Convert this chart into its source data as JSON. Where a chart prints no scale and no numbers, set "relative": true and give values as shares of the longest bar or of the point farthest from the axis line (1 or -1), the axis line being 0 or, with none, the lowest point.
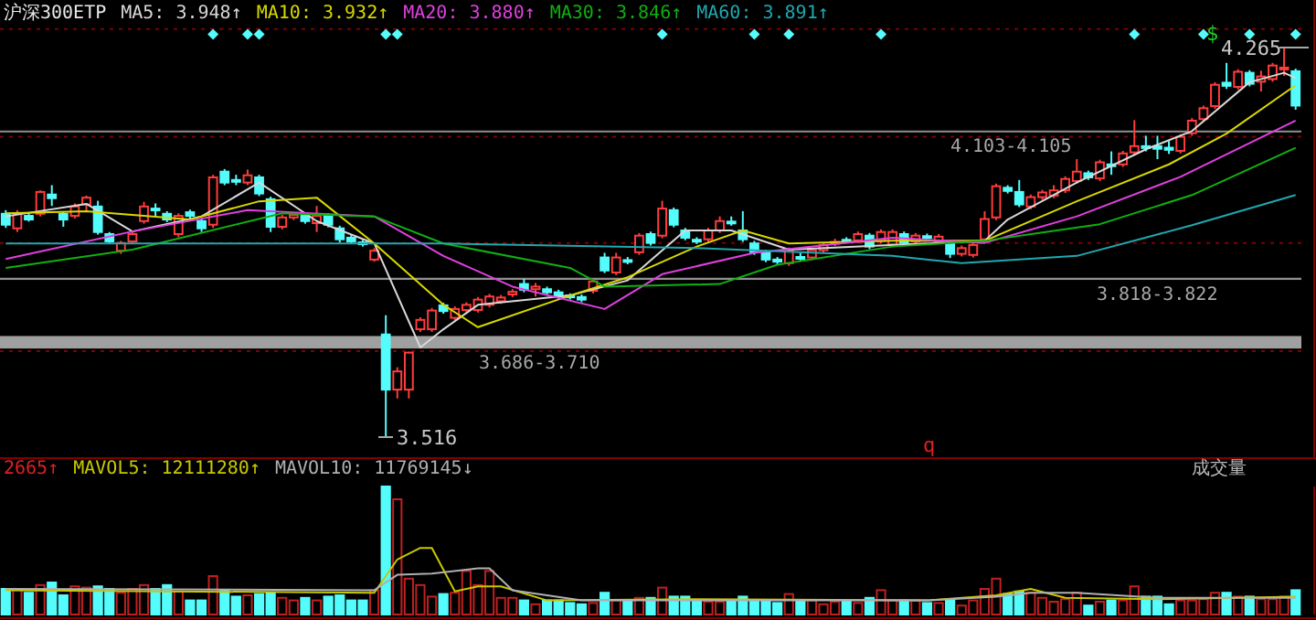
{
  "chart_data": [
    {
      "type": "candlestick",
      "title": "沪深300ETP",
      "legend": "top left",
      "grid": "y",
      "categories": [
        null,
        null,
        null,
        null,
        null,
        null,
        null,
        null,
        null,
        null,
        null,
        null,
        null,
        null,
        null,
        null,
        null,
        null,
        null,
        null,
        null,
        null,
        null,
        null,
        null,
        null,
        null,
        null,
        null,
        null,
        null,
        null,
        null,
        null,
        null,
        null,
        null,
        null,
        null,
        null,
        null,
        null,
        null,
        null,
        null,
        null,
        null,
        null,
        null,
        null,
        null,
        null,
        null,
        null,
        null,
        null,
        null,
        null,
        null,
        null,
        null,
        null,
        null,
        null,
        null,
        null,
        null,
        null,
        null,
        null,
        null,
        null,
        null,
        null,
        null,
        null,
        null,
        null,
        null,
        null,
        null,
        null,
        null,
        null,
        null,
        null,
        null,
        null,
        null,
        null,
        null,
        null,
        null,
        null,
        null,
        null,
        null,
        null,
        null,
        null,
        null,
        null,
        null,
        null,
        null,
        null,
        null,
        null,
        null,
        null,
        null,
        null,
        null
      ],
      "ylim": [
        3.477,
        4.356
      ],
      "yticks": [
        {
          "value": 3.681,
          "label": null
        },
        {
          "value": 3.889,
          "label": null
        },
        {
          "value": 4.093,
          "label": null
        },
        {
          "value": 4.3,
          "label": null
        }
      ],
      "ohlc": [
        [
          3.945,
          3.952,
          3.918,
          3.924
        ],
        [
          3.917,
          3.952,
          3.91,
          3.945
        ],
        [
          3.941,
          3.947,
          3.93,
          3.934
        ],
        [
          3.945,
          3.99,
          3.94,
          3.987
        ],
        [
          3.982,
          4.0,
          3.96,
          3.975
        ],
        [
          3.945,
          3.95,
          3.92,
          3.934
        ],
        [
          3.941,
          3.965,
          3.936,
          3.959
        ],
        [
          3.963,
          3.98,
          3.95,
          3.976
        ],
        [
          3.959,
          3.97,
          3.905,
          3.91
        ],
        [
          3.906,
          3.91,
          3.887,
          3.892
        ],
        [
          3.874,
          3.893,
          3.868,
          3.889
        ],
        [
          3.892,
          3.912,
          3.887,
          3.906
        ],
        [
          3.931,
          3.968,
          3.926,
          3.959
        ],
        [
          3.955,
          3.965,
          3.94,
          3.952
        ],
        [
          3.945,
          3.95,
          3.929,
          3.934
        ],
        [
          3.906,
          3.946,
          3.9,
          3.941
        ],
        [
          3.948,
          3.953,
          3.936,
          3.941
        ],
        [
          3.931,
          3.936,
          3.91,
          3.917
        ],
        [
          3.924,
          4.02,
          3.918,
          4.015
        ],
        [
          4.026,
          4.031,
          4.0,
          4.005
        ],
        [
          4.01,
          4.02,
          4.0,
          4.008
        ],
        [
          4.005,
          4.03,
          4.0,
          4.019
        ],
        [
          4.015,
          4.02,
          3.979,
          3.984
        ],
        [
          3.973,
          3.978,
          3.91,
          3.92
        ],
        [
          3.92,
          3.943,
          3.915,
          3.938
        ],
        [
          3.938,
          3.948,
          3.933,
          3.943
        ],
        [
          3.941,
          3.946,
          3.926,
          3.931
        ],
        [
          3.927,
          3.96,
          3.91,
          3.941
        ],
        [
          3.941,
          3.946,
          3.919,
          3.924
        ],
        [
          3.917,
          3.922,
          3.89,
          3.896
        ],
        [
          3.899,
          3.904,
          3.887,
          3.892
        ],
        [
          3.89,
          3.895,
          3.882,
          3.887
        ],
        [
          3.857,
          3.879,
          3.853,
          3.874
        ],
        [
          3.713,
          3.75,
          3.516,
          3.607
        ],
        [
          3.607,
          3.65,
          3.59,
          3.642
        ],
        [
          3.607,
          3.68,
          3.59,
          3.678
        ],
        [
          3.723,
          3.746,
          3.718,
          3.741
        ],
        [
          3.723,
          3.764,
          3.718,
          3.759
        ],
        [
          3.769,
          3.774,
          3.753,
          3.758
        ],
        [
          3.745,
          3.767,
          3.74,
          3.762
        ],
        [
          3.76,
          3.775,
          3.755,
          3.77
        ],
        [
          3.76,
          3.785,
          3.755,
          3.78
        ],
        [
          3.77,
          3.791,
          3.765,
          3.786
        ],
        [
          3.777,
          3.789,
          3.772,
          3.784
        ],
        [
          3.79,
          3.8,
          3.785,
          3.795
        ],
        [
          3.81,
          3.82,
          3.794,
          3.799
        ],
        [
          3.8,
          3.812,
          3.786,
          3.805
        ],
        [
          3.8,
          3.805,
          3.789,
          3.794
        ],
        [
          3.794,
          3.799,
          3.781,
          3.786
        ],
        [
          3.788,
          3.792,
          3.78,
          3.785
        ],
        [
          3.785,
          3.79,
          3.775,
          3.78
        ],
        [
          3.797,
          3.82,
          3.792,
          3.815
        ],
        [
          3.861,
          3.87,
          3.831,
          3.836
        ],
        [
          3.832,
          3.87,
          3.827,
          3.861
        ],
        [
          3.856,
          3.862,
          3.848,
          3.854
        ],
        [
          3.871,
          3.908,
          3.866,
          3.903
        ],
        [
          3.906,
          3.911,
          3.884,
          3.889
        ],
        [
          3.903,
          3.97,
          3.898,
          3.955
        ],
        [
          3.952,
          3.957,
          3.919,
          3.924
        ],
        [
          3.913,
          3.918,
          3.894,
          3.899
        ],
        [
          3.895,
          3.9,
          3.887,
          3.892
        ],
        [
          3.896,
          3.918,
          3.891,
          3.913
        ],
        [
          3.913,
          3.94,
          3.908,
          3.931
        ],
        [
          3.93,
          3.94,
          3.922,
          3.927
        ],
        [
          3.913,
          3.95,
          3.891,
          3.896
        ],
        [
          3.888,
          3.893,
          3.866,
          3.871
        ],
        [
          3.871,
          3.876,
          3.852,
          3.857
        ],
        [
          3.857,
          3.862,
          3.848,
          3.853
        ],
        [
          3.85,
          3.88,
          3.845,
          3.875
        ],
        [
          3.862,
          3.87,
          3.855,
          3.86
        ],
        [
          3.861,
          3.88,
          3.856,
          3.875
        ],
        [
          3.875,
          3.89,
          3.87,
          3.885
        ],
        [
          3.889,
          3.897,
          3.883,
          3.891
        ],
        [
          3.895,
          3.9,
          3.888,
          3.893
        ],
        [
          3.894,
          3.911,
          3.889,
          3.906
        ],
        [
          3.903,
          3.908,
          3.877,
          3.882
        ],
        [
          3.893,
          3.915,
          3.888,
          3.91
        ],
        [
          3.886,
          3.915,
          3.881,
          3.91
        ],
        [
          3.906,
          3.911,
          3.884,
          3.889
        ],
        [
          3.892,
          3.908,
          3.887,
          3.903
        ],
        [
          3.902,
          3.907,
          3.894,
          3.899
        ],
        [
          3.892,
          3.906,
          3.887,
          3.901
        ],
        [
          3.888,
          3.893,
          3.86,
          3.868
        ],
        [
          3.868,
          3.884,
          3.863,
          3.879
        ],
        [
          3.866,
          3.89,
          3.861,
          3.885
        ],
        [
          3.896,
          3.95,
          3.891,
          3.935
        ],
        [
          3.938,
          4.003,
          3.933,
          3.998
        ],
        [
          3.995,
          4.0,
          3.984,
          3.989
        ],
        [
          3.987,
          4.01,
          3.958,
          3.963
        ],
        [
          3.959,
          3.982,
          3.954,
          3.977
        ],
        [
          3.977,
          3.991,
          3.972,
          3.986
        ],
        [
          3.98,
          4.0,
          3.975,
          3.99
        ],
        [
          3.99,
          4.017,
          3.985,
          4.012
        ],
        [
          4.008,
          4.05,
          4.003,
          4.026
        ],
        [
          4.023,
          4.028,
          4.01,
          4.015
        ],
        [
          4.013,
          4.049,
          4.008,
          4.044
        ],
        [
          4.04,
          4.065,
          4.02,
          4.038
        ],
        [
          4.04,
          4.066,
          4.035,
          4.061
        ],
        [
          4.063,
          4.125,
          4.058,
          4.075
        ],
        [
          4.075,
          4.095,
          4.065,
          4.072
        ],
        [
          4.075,
          4.095,
          4.05,
          4.07
        ],
        [
          4.072,
          4.085,
          4.06,
          4.068
        ],
        [
          4.066,
          4.098,
          4.061,
          4.093
        ],
        [
          4.1,
          4.129,
          4.095,
          4.124
        ],
        [
          4.127,
          4.153,
          4.122,
          4.148
        ],
        [
          4.152,
          4.198,
          4.147,
          4.193
        ],
        [
          4.197,
          4.235,
          4.185,
          4.191
        ],
        [
          4.189,
          4.223,
          4.184,
          4.218
        ],
        [
          4.216,
          4.221,
          4.19,
          4.195
        ],
        [
          4.199,
          4.22,
          4.18,
          4.209
        ],
        [
          4.204,
          4.235,
          4.199,
          4.23
        ],
        [
          4.224,
          4.265,
          4.21,
          4.226
        ],
        [
          4.219,
          4.224,
          4.145,
          4.153
        ]
      ],
      "series": [
        {
          "name": "MA5: 3.948↑",
          "type": "line",
          "color": "#d8d8d8",
          "values": [
            3.94,
            null,
            null,
            null,
            null,
            null,
            null,
            3.964,
            null,
            null,
            null,
            3.911,
            null,
            null,
            null,
            null,
            null,
            3.94,
            null,
            null,
            null,
            null,
            4.005,
            null,
            null,
            null,
            null,
            3.931,
            null,
            null,
            null,
            null,
            3.888,
            null,
            null,
            null,
            3.688,
            null,
            3.723,
            null,
            null,
            3.77,
            null,
            null,
            null,
            null,
            null,
            null,
            null,
            3.788,
            null,
            null,
            null,
            null,
            3.817,
            null,
            null,
            null,
            null,
            3.913,
            null,
            null,
            null,
            3.913,
            null,
            null,
            null,
            null,
            3.876,
            null,
            null,
            null,
            null,
            null,
            null,
            null,
            null,
            null,
            null,
            null,
            null,
            null,
            null,
            null,
            null,
            3.893,
            null,
            3.934,
            null,
            null,
            null,
            null,
            null,
            4.005,
            null,
            null,
            null,
            null,
            null,
            4.069,
            null,
            null,
            null,
            4.104,
            null,
            null,
            null,
            null,
            4.198,
            null,
            null,
            4.216,
            4.206
          ]
        },
        {
          "name": "MA10: 3.932↑",
          "type": "line",
          "color": "#d8d800",
          "values": [
            3.946,
            null,
            null,
            null,
            null,
            null,
            null,
            3.95,
            null,
            null,
            null,
            null,
            null,
            null,
            null,
            null,
            3.934,
            null,
            null,
            null,
            null,
            null,
            3.969,
            null,
            null,
            null,
            null,
            3.976,
            null,
            null,
            null,
            null,
            3.888,
            null,
            null,
            null,
            null,
            null,
            3.77,
            null,
            null,
            3.727,
            null,
            null,
            null,
            null,
            null,
            null,
            null,
            3.788,
            null,
            null,
            null,
            null,
            3.823,
            null,
            null,
            null,
            null,
            null,
            3.882,
            null,
            null,
            null,
            3.913,
            null,
            null,
            null,
            3.888,
            null,
            null,
            null,
            null,
            null,
            null,
            null,
            null,
            3.893,
            null,
            null,
            null,
            null,
            null,
            null,
            null,
            3.893,
            null,
            null,
            null,
            null,
            null,
            null,
            null,
            3.969,
            null,
            null,
            null,
            null,
            null,
            null,
            null,
            4.04,
            null,
            null,
            null,
            null,
            4.099,
            null,
            null,
            null,
            null,
            null,
            4.192
          ]
        },
        {
          "name": "MA20: 3.880↑",
          "type": "line",
          "color": "#e040e0",
          "values": [
            3.858,
            null,
            null,
            null,
            null,
            null,
            null,
            null,
            null,
            null,
            null,
            3.911,
            null,
            null,
            null,
            null,
            null,
            null,
            null,
            null,
            null,
            3.952,
            null,
            null,
            null,
            null,
            null,
            null,
            null,
            null,
            null,
            null,
            3.94,
            null,
            null,
            null,
            null,
            null,
            3.864,
            null,
            null,
            null,
            null,
            null,
            3.805,
            null,
            null,
            null,
            null,
            null,
            null,
            null,
            3.762,
            null,
            null,
            null,
            null,
            3.829,
            null,
            null,
            null,
            null,
            null,
            null,
            null,
            3.87,
            null,
            null,
            null,
            null,
            null,
            null,
            null,
            null,
            null,
            null,
            null,
            3.899,
            null,
            null,
            null,
            null,
            null,
            null,
            null,
            3.889,
            null,
            null,
            null,
            null,
            null,
            null,
            null,
            3.94,
            null,
            null,
            null,
            null,
            null,
            null,
            null,
            null,
            4.016,
            null,
            null,
            null,
            null,
            null,
            null,
            null,
            null,
            null,
            4.124
          ]
        },
        {
          "name": "MA30: 3.846↑",
          "type": "line",
          "color": "#10b010",
          "values": [
            3.841,
            null,
            null,
            null,
            null,
            null,
            null,
            null,
            null,
            null,
            null,
            3.876,
            null,
            null,
            null,
            null,
            null,
            null,
            null,
            null,
            null,
            null,
            null,
            null,
            3.946,
            null,
            null,
            null,
            null,
            null,
            null,
            null,
            3.94,
            null,
            null,
            null,
            null,
            null,
            3.888,
            null,
            null,
            null,
            null,
            null,
            null,
            null,
            null,
            null,
            null,
            3.841,
            null,
            null,
            3.805,
            null,
            null,
            null,
            null,
            null,
            null,
            null,
            null,
            null,
            3.81,
            null,
            null,
            null,
            null,
            3.847,
            null,
            null,
            null,
            null,
            null,
            null,
            null,
            null,
            null,
            3.882,
            null,
            null,
            null,
            null,
            null,
            null,
            null,
            3.893,
            null,
            null,
            null,
            null,
            null,
            null,
            null,
            null,
            null,
            3.925,
            null,
            null,
            null,
            null,
            null,
            null,
            null,
            3.981,
            null,
            null,
            null,
            null,
            null,
            null,
            null,
            null,
            4.072
          ]
        },
        {
          "name": "MA60: 3.891↑",
          "type": "line",
          "color": "#20a8b0",
          "values": [
            3.888,
            null,
            null,
            null,
            null,
            null,
            null,
            null,
            null,
            null,
            null,
            null,
            null,
            null,
            null,
            null,
            null,
            null,
            null,
            null,
            null,
            null,
            null,
            null,
            null,
            null,
            null,
            null,
            null,
            null,
            null,
            null,
            null,
            null,
            null,
            null,
            null,
            null,
            3.888,
            null,
            null,
            null,
            null,
            null,
            null,
            null,
            null,
            null,
            null,
            null,
            null,
            null,
            null,
            null,
            null,
            null,
            null,
            null,
            null,
            null,
            3.879,
            null,
            null,
            null,
            null,
            null,
            null,
            null,
            null,
            null,
            null,
            null,
            null,
            null,
            null,
            null,
            null,
            3.864,
            null,
            null,
            null,
            null,
            null,
            3.85,
            null,
            null,
            null,
            null,
            null,
            null,
            null,
            null,
            null,
            3.864,
            null,
            null,
            null,
            null,
            null,
            null,
            null,
            null,
            null,
            3.923,
            null,
            null,
            null,
            null,
            null,
            null,
            null,
            null,
            3.981
          ]
        },
        {
          "type": "scatter",
          "marker": "diamond",
          "color": "#54fcfc",
          "values": [
            null,
            null,
            null,
            null,
            null,
            null,
            null,
            null,
            null,
            null,
            null,
            null,
            null,
            null,
            null,
            null,
            null,
            null,
            4.29,
            null,
            null,
            4.29,
            4.29,
            null,
            null,
            null,
            null,
            null,
            null,
            null,
            null,
            null,
            null,
            4.29,
            4.29,
            null,
            null,
            null,
            null,
            null,
            null,
            null,
            null,
            null,
            null,
            null,
            null,
            null,
            null,
            null,
            null,
            null,
            null,
            null,
            null,
            null,
            null,
            4.29,
            null,
            null,
            null,
            null,
            null,
            null,
            null,
            4.29,
            null,
            null,
            4.29,
            null,
            null,
            null,
            null,
            null,
            null,
            null,
            4.29,
            null,
            null,
            null,
            null,
            null,
            null,
            null,
            null,
            null,
            null,
            null,
            null,
            null,
            null,
            null,
            null,
            null,
            null,
            null,
            null,
            null,
            4.29,
            null,
            null,
            null,
            null,
            null,
            4.29,
            null,
            null,
            null,
            4.29,
            null,
            null,
            null,
            4.29
          ]
        }
      ],
      "bands": [
        {
          "axis": "y",
          "from": 3.686,
          "to": 3.71,
          "label": "3.686-3.710",
          "color": "#a0a0a0"
        },
        {
          "axis": "y",
          "from": 3.818,
          "to": 3.822,
          "label": "3.818-3.822",
          "color": "#909090"
        },
        {
          "axis": "y",
          "from": 4.103,
          "to": 4.105,
          "label": "4.103-4.105",
          "color": "#909090"
        }
      ],
      "annotations": [
        "3.516",
        "4.265",
        "$",
        "q"
      ]
    },
    {
      "type": "bar",
      "title": "成交量",
      "relative": true,
      "legend": "top left",
      "categories": [
        null,
        null,
        null,
        null,
        null,
        null,
        null,
        null,
        null,
        null,
        null,
        null,
        null,
        null,
        null,
        null,
        null,
        null,
        null,
        null,
        null,
        null,
        null,
        null,
        null,
        null,
        null,
        null,
        null,
        null,
        null,
        null,
        null,
        null,
        null,
        null,
        null,
        null,
        null,
        null,
        null,
        null,
        null,
        null,
        null,
        null,
        null,
        null,
        null,
        null,
        null,
        null,
        null,
        null,
        null,
        null,
        null,
        null,
        null,
        null,
        null,
        null,
        null,
        null,
        null,
        null,
        null,
        null,
        null,
        null,
        null,
        null,
        null,
        null,
        null,
        null,
        null,
        null,
        null,
        null,
        null,
        null,
        null,
        null,
        null,
        null,
        null,
        null,
        null,
        null,
        null,
        null,
        null,
        null,
        null,
        null,
        null,
        null,
        null,
        null,
        null,
        null,
        null,
        null,
        null,
        null,
        null,
        null,
        null,
        null,
        null,
        null,
        null
      ],
      "series": [
        {
          "type": "bar",
          "colors": [
            "#54fcfc",
            "#c02020",
            "#54fcfc",
            "#c02020",
            "#54fcfc",
            "#54fcfc",
            "#c02020",
            "#c02020",
            "#54fcfc",
            "#54fcfc",
            "#c02020",
            "#c02020",
            "#c02020",
            "#54fcfc",
            "#54fcfc",
            "#c02020",
            "#54fcfc",
            "#54fcfc",
            "#c02020",
            "#54fcfc",
            "#54fcfc",
            "#c02020",
            "#54fcfc",
            "#54fcfc",
            "#c02020",
            "#c02020",
            "#54fcfc",
            "#c02020",
            "#54fcfc",
            "#54fcfc",
            "#54fcfc",
            "#54fcfc",
            "#c02020",
            "#54fcfc",
            "#c02020",
            "#c02020",
            "#c02020",
            "#c02020",
            "#54fcfc",
            "#c02020",
            "#c02020",
            "#c02020",
            "#c02020",
            "#c02020",
            "#c02020",
            "#54fcfc",
            "#c02020",
            "#54fcfc",
            "#54fcfc",
            "#54fcfc",
            "#54fcfc",
            "#c02020",
            "#54fcfc",
            "#c02020",
            "#54fcfc",
            "#c02020",
            "#54fcfc",
            "#c02020",
            "#54fcfc",
            "#54fcfc",
            "#54fcfc",
            "#c02020",
            "#c02020",
            "#54fcfc",
            "#54fcfc",
            "#54fcfc",
            "#54fcfc",
            "#54fcfc",
            "#c02020",
            "#54fcfc",
            "#c02020",
            "#c02020",
            "#c02020",
            "#54fcfc",
            "#c02020",
            "#54fcfc",
            "#c02020",
            "#c02020",
            "#54fcfc",
            "#c02020",
            "#54fcfc",
            "#c02020",
            "#54fcfc",
            "#c02020",
            "#c02020",
            "#c02020",
            "#c02020",
            "#54fcfc",
            "#54fcfc",
            "#c02020",
            "#c02020",
            "#c02020",
            "#c02020",
            "#c02020",
            "#54fcfc",
            "#c02020",
            "#54fcfc",
            "#c02020",
            "#c02020",
            "#54fcfc",
            "#54fcfc",
            "#54fcfc",
            "#c02020",
            "#c02020",
            "#c02020",
            "#c02020",
            "#54fcfc",
            "#c02020",
            "#54fcfc",
            "#c02020",
            "#c02020",
            "#c02020",
            "#54fcfc"
          ],
          "values": [
            0.2,
            0.2,
            0.17,
            0.23,
            0.25,
            0.15,
            0.22,
            0.21,
            0.22,
            0.2,
            0.17,
            0.2,
            0.23,
            0.2,
            0.23,
            0.18,
            0.11,
            0.11,
            0.3,
            0.19,
            0.14,
            0.15,
            0.16,
            0.17,
            0.13,
            0.11,
            0.13,
            0.11,
            0.14,
            0.15,
            0.11,
            0.11,
            0.19,
            1,
            0.9,
            0.28,
            0.23,
            0.14,
            0.16,
            0.17,
            0.34,
            0.23,
            0.34,
            0.13,
            0.13,
            0.11,
            0.08,
            0.11,
            0.11,
            0.09,
            0.08,
            0.09,
            0.17,
            0.11,
            0.11,
            0.13,
            0.13,
            0.21,
            0.14,
            0.14,
            0.1,
            0.1,
            0.1,
            0.1,
            0.14,
            0.11,
            0.11,
            0.09,
            0.16,
            0.11,
            0.11,
            0.08,
            0.1,
            0.1,
            0.09,
            0.13,
            0.19,
            0.11,
            0.11,
            0.11,
            0.09,
            0.09,
            0.11,
            0.07,
            0.11,
            0.2,
            0.28,
            0.16,
            0.18,
            0.17,
            0.13,
            0.1,
            0.12,
            0.17,
            0.07,
            0.1,
            0.11,
            0.11,
            0.22,
            0.14,
            0.14,
            0.08,
            0.11,
            0.11,
            0.12,
            0.17,
            0.17,
            0.14,
            0.14,
            0.12,
            0.12,
            0.14,
            0.19
          ]
        },
        {
          "name": "MAVOL5: 12111280↑",
          "type": "line",
          "color": "#c8c800",
          "values": [
            0.19,
            null,
            null,
            null,
            null,
            null,
            null,
            null,
            null,
            null,
            null,
            null,
            null,
            null,
            null,
            null,
            null,
            null,
            null,
            null,
            null,
            null,
            null,
            null,
            null,
            null,
            null,
            null,
            null,
            null,
            null,
            null,
            0.17,
            null,
            0.43,
            null,
            0.52,
            0.52,
            null,
            0.18,
            null,
            0.22,
            null,
            0.22,
            null,
            null,
            null,
            0.11,
            null,
            null,
            null,
            null,
            null,
            null,
            null,
            null,
            null,
            null,
            null,
            null,
            0.12,
            null,
            null,
            null,
            null,
            null,
            null,
            null,
            null,
            null,
            null,
            null,
            null,
            null,
            null,
            null,
            null,
            null,
            null,
            null,
            0.11,
            null,
            null,
            null,
            null,
            null,
            0.15,
            null,
            null,
            0.2,
            null,
            null,
            0.13,
            null,
            null,
            null,
            null,
            null,
            null,
            null,
            0.12,
            null,
            null,
            null,
            null,
            null,
            null,
            null,
            null,
            null,
            null,
            null,
            0.14
          ]
        },
        {
          "name": "MAVOL10: 11769145↓",
          "type": "line",
          "color": "#b0b0b0",
          "values": [
            0.2,
            null,
            null,
            null,
            null,
            null,
            null,
            null,
            null,
            null,
            null,
            null,
            null,
            null,
            null,
            null,
            null,
            null,
            null,
            null,
            null,
            null,
            null,
            null,
            null,
            null,
            null,
            null,
            null,
            null,
            null,
            null,
            0.19,
            null,
            0.31,
            null,
            null,
            0.32,
            null,
            null,
            null,
            0.36,
            0.36,
            null,
            0.19,
            null,
            null,
            null,
            null,
            null,
            0.11,
            null,
            null,
            null,
            null,
            null,
            null,
            null,
            null,
            null,
            null,
            null,
            null,
            null,
            null,
            null,
            null,
            null,
            null,
            null,
            null,
            null,
            null,
            null,
            null,
            null,
            null,
            null,
            null,
            null,
            0.11,
            null,
            null,
            null,
            null,
            null,
            0.14,
            null,
            null,
            0.17,
            null,
            null,
            null,
            0.17,
            null,
            null,
            null,
            null,
            null,
            null,
            0.13,
            null,
            null,
            null,
            null,
            null,
            null,
            null,
            null,
            null,
            null,
            null,
            0.13
          ]
        }
      ],
      "annotations": [
        "2665↑"
      ]
    }
  ]
}
